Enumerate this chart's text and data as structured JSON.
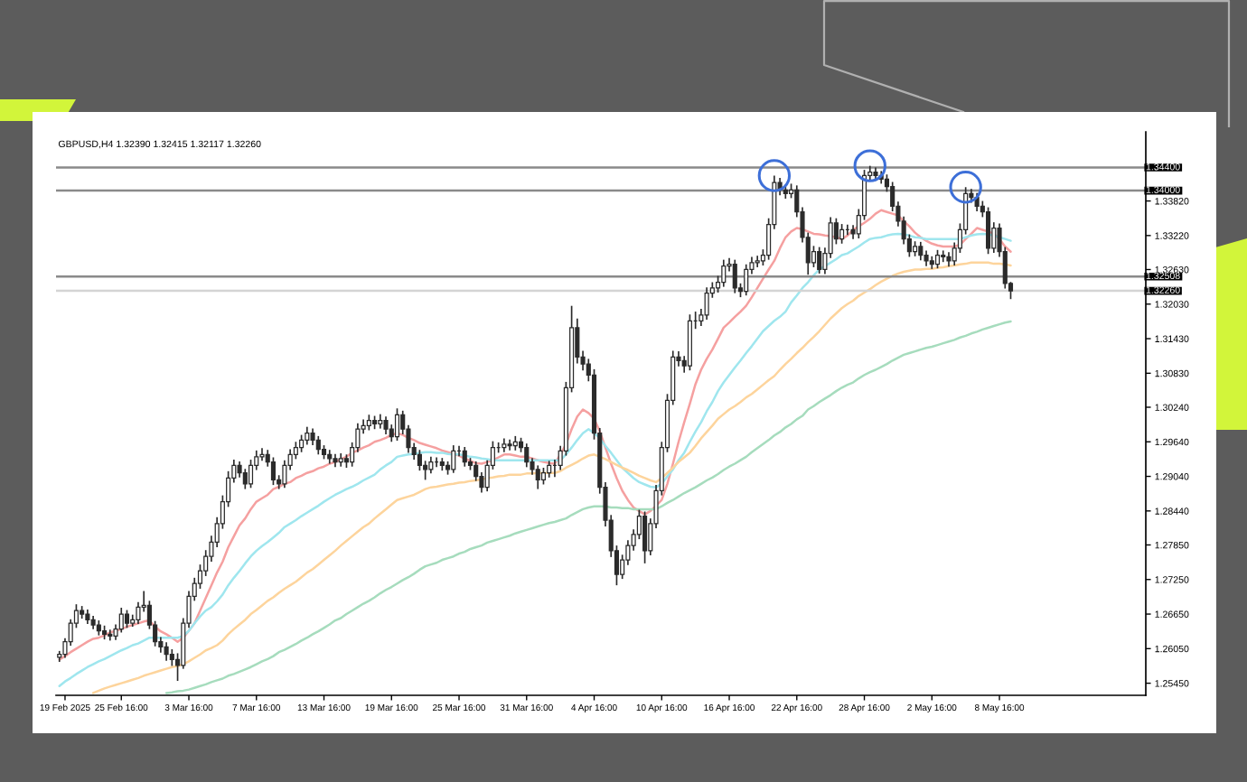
{
  "chart_data": {
    "type": "candlestick",
    "title": "GBPUSD,H4 1.32390 1.32415 1.32117 1.32260",
    "color": "#2b2b2b",
    "categories": [
      null,
      "19 Feb 2025",
      null,
      null,
      null,
      null,
      null,
      null,
      null,
      null,
      null,
      "25 Feb 16:00",
      null,
      null,
      null,
      null,
      null,
      null,
      null,
      null,
      null,
      null,
      null,
      "3 Mar 16:00",
      null,
      null,
      null,
      null,
      null,
      null,
      null,
      null,
      null,
      null,
      null,
      "7 Mar 16:00",
      null,
      null,
      null,
      null,
      null,
      null,
      null,
      null,
      null,
      null,
      null,
      "13 Mar 16:00",
      null,
      null,
      null,
      null,
      null,
      null,
      null,
      null,
      null,
      null,
      null,
      "19 Mar 16:00",
      null,
      null,
      null,
      null,
      null,
      null,
      null,
      null,
      null,
      null,
      null,
      "25 Mar 16:00",
      null,
      null,
      null,
      null,
      null,
      null,
      null,
      null,
      null,
      null,
      null,
      "31 Mar 16:00",
      null,
      null,
      null,
      null,
      null,
      null,
      null,
      null,
      null,
      null,
      null,
      "4 Apr 16:00",
      null,
      null,
      null,
      null,
      null,
      null,
      null,
      null,
      null,
      null,
      null,
      "10 Apr 16:00",
      null,
      null,
      null,
      null,
      null,
      null,
      null,
      null,
      null,
      null,
      null,
      "16 Apr 16:00",
      null,
      null,
      null,
      null,
      null,
      null,
      null,
      null,
      null,
      null,
      null,
      "22 Apr 16:00",
      null,
      null,
      null,
      null,
      null,
      null,
      null,
      null,
      null,
      null,
      null,
      "28 Apr 16:00",
      null,
      null,
      null,
      null,
      null,
      null,
      null,
      null,
      null,
      null,
      null,
      "2 May 16:00",
      null,
      null,
      null,
      null,
      null,
      null,
      null,
      null,
      null,
      null,
      null,
      "8 May 16:00",
      null,
      null
    ],
    "ohlc": [
      [
        1.259,
        1.2601,
        1.2582,
        1.2595
      ],
      [
        1.2595,
        1.2623,
        1.2589,
        1.2617
      ],
      [
        1.2617,
        1.2656,
        1.261,
        1.2649
      ],
      [
        1.2649,
        1.2682,
        1.2641,
        1.2671
      ],
      [
        1.2671,
        1.2679,
        1.2657,
        1.2665
      ],
      [
        1.2665,
        1.2673,
        1.2648,
        1.2655
      ],
      [
        1.2655,
        1.2662,
        1.2639,
        1.2646
      ],
      [
        1.2646,
        1.2654,
        1.2628,
        1.2636
      ],
      [
        1.2636,
        1.2645,
        1.2621,
        1.263
      ],
      [
        1.263,
        1.2638,
        1.2619,
        1.2627
      ],
      [
        1.2627,
        1.2647,
        1.262,
        1.2639
      ],
      [
        1.2639,
        1.2676,
        1.2633,
        1.2665
      ],
      [
        1.2665,
        1.2672,
        1.2641,
        1.2649
      ],
      [
        1.2649,
        1.2664,
        1.2643,
        1.2655
      ],
      [
        1.2655,
        1.2686,
        1.2648,
        1.2677
      ],
      [
        1.2677,
        1.2705,
        1.2669,
        1.268
      ],
      [
        1.268,
        1.2688,
        1.2639,
        1.2646
      ],
      [
        1.2646,
        1.2653,
        1.2609,
        1.2617
      ],
      [
        1.2617,
        1.2625,
        1.2598,
        1.2608
      ],
      [
        1.2608,
        1.2616,
        1.2584,
        1.2595
      ],
      [
        1.2595,
        1.2604,
        1.2575,
        1.2586
      ],
      [
        1.2586,
        1.2597,
        1.2549,
        1.2576
      ],
      [
        1.2576,
        1.2658,
        1.257,
        1.2649
      ],
      [
        1.2649,
        1.2705,
        1.2641,
        1.2696
      ],
      [
        1.2696,
        1.2728,
        1.2688,
        1.2718
      ],
      [
        1.2718,
        1.2751,
        1.2709,
        1.274
      ],
      [
        1.274,
        1.2776,
        1.2731,
        1.2765
      ],
      [
        1.2765,
        1.2801,
        1.2756,
        1.279
      ],
      [
        1.279,
        1.2833,
        1.2781,
        1.2822
      ],
      [
        1.2822,
        1.2871,
        1.2813,
        1.286
      ],
      [
        1.286,
        1.2913,
        1.2851,
        1.2901
      ],
      [
        1.2901,
        1.2933,
        1.2893,
        1.2923
      ],
      [
        1.2923,
        1.293,
        1.2902,
        1.291
      ],
      [
        1.291,
        1.2917,
        1.2882,
        1.2891
      ],
      [
        1.2891,
        1.2933,
        1.2884,
        1.2923
      ],
      [
        1.2923,
        1.2949,
        1.2915,
        1.2938
      ],
      [
        1.2938,
        1.2953,
        1.2931,
        1.2942
      ],
      [
        1.2942,
        1.295,
        1.2921,
        1.2929
      ],
      [
        1.2929,
        1.2937,
        1.2889,
        1.2898
      ],
      [
        1.2898,
        1.2906,
        1.2882,
        1.2891
      ],
      [
        1.2891,
        1.2932,
        1.2884,
        1.2923
      ],
      [
        1.2923,
        1.2951,
        1.2915,
        1.2942
      ],
      [
        1.2942,
        1.2964,
        1.2934,
        1.2954
      ],
      [
        1.2954,
        1.2976,
        1.2946,
        1.2967
      ],
      [
        1.2967,
        1.299,
        1.2959,
        1.2979
      ],
      [
        1.2979,
        1.2987,
        1.2958,
        1.2967
      ],
      [
        1.2967,
        1.2974,
        1.2942,
        1.2951
      ],
      [
        1.2951,
        1.2958,
        1.2934,
        1.2942
      ],
      [
        1.2942,
        1.295,
        1.2926,
        1.2935
      ],
      [
        1.2935,
        1.2943,
        1.292,
        1.2929
      ],
      [
        1.2929,
        1.2944,
        1.2921,
        1.2935
      ],
      [
        1.2935,
        1.2942,
        1.2919,
        1.2929
      ],
      [
        1.2929,
        1.2963,
        1.2921,
        1.2954
      ],
      [
        1.2954,
        1.2996,
        1.2946,
        1.2986
      ],
      [
        1.2986,
        1.3003,
        1.2978,
        1.2992
      ],
      [
        1.2992,
        1.3011,
        1.2984,
        1.3001
      ],
      [
        1.3001,
        1.3009,
        1.2986,
        1.2995
      ],
      [
        1.2995,
        1.3012,
        1.2987,
        1.3001
      ],
      [
        1.3001,
        1.3008,
        1.2977,
        1.2986
      ],
      [
        1.2986,
        1.2994,
        1.2964,
        1.2973
      ],
      [
        1.2973,
        1.3022,
        1.2966,
        1.3011
      ],
      [
        1.3011,
        1.3018,
        1.2977,
        1.2986
      ],
      [
        1.2986,
        1.2993,
        1.2945,
        1.2954
      ],
      [
        1.2954,
        1.2962,
        1.2933,
        1.2942
      ],
      [
        1.2942,
        1.295,
        1.2914,
        1.2923
      ],
      [
        1.2923,
        1.2931,
        1.2898,
        1.2916
      ],
      [
        1.2916,
        1.2938,
        1.2909,
        1.2929
      ],
      [
        1.2929,
        1.2937,
        1.292,
        1.2929
      ],
      [
        1.2929,
        1.2936,
        1.2914,
        1.2923
      ],
      [
        1.2923,
        1.293,
        1.2907,
        1.2916
      ],
      [
        1.2916,
        1.2958,
        1.291,
        1.2948
      ],
      [
        1.2948,
        1.2957,
        1.2939,
        1.2948
      ],
      [
        1.2948,
        1.2955,
        1.2921,
        1.2929
      ],
      [
        1.2929,
        1.2936,
        1.2915,
        1.2923
      ],
      [
        1.2923,
        1.293,
        1.2896,
        1.2904
      ],
      [
        1.2904,
        1.2911,
        1.2876,
        1.2885
      ],
      [
        1.2885,
        1.2932,
        1.2878,
        1.2923
      ],
      [
        1.2923,
        1.2965,
        1.2916,
        1.2954
      ],
      [
        1.2954,
        1.2963,
        1.2945,
        1.2954
      ],
      [
        1.2954,
        1.297,
        1.2946,
        1.296
      ],
      [
        1.296,
        1.2968,
        1.2949,
        1.2957
      ],
      [
        1.2957,
        1.2974,
        1.2949,
        1.2964
      ],
      [
        1.2964,
        1.2971,
        1.2946,
        1.2954
      ],
      [
        1.2954,
        1.2961,
        1.292,
        1.2929
      ],
      [
        1.2929,
        1.2936,
        1.2907,
        1.2916
      ],
      [
        1.2916,
        1.2923,
        1.2882,
        1.2898
      ],
      [
        1.2898,
        1.2919,
        1.289,
        1.291
      ],
      [
        1.291,
        1.2931,
        1.2902,
        1.2923
      ],
      [
        1.2923,
        1.2933,
        1.2903,
        1.2923
      ],
      [
        1.2923,
        1.2957,
        1.2915,
        1.2948
      ],
      [
        1.2948,
        1.3068,
        1.294,
        1.3058
      ],
      [
        1.3058,
        1.32,
        1.305,
        1.3162
      ],
      [
        1.3162,
        1.3178,
        1.31,
        1.3111
      ],
      [
        1.3111,
        1.3122,
        1.3088,
        1.3099
      ],
      [
        1.3099,
        1.3108,
        1.3069,
        1.308
      ],
      [
        1.308,
        1.309,
        1.2968,
        1.2979
      ],
      [
        1.2979,
        1.2988,
        1.2874,
        1.2885
      ],
      [
        1.2885,
        1.2894,
        1.2817,
        1.2828
      ],
      [
        1.2828,
        1.2837,
        1.2764,
        1.2775
      ],
      [
        1.2775,
        1.2784,
        1.2715,
        1.2734
      ],
      [
        1.2734,
        1.2768,
        1.2726,
        1.2759
      ],
      [
        1.2759,
        1.2793,
        1.275,
        1.2784
      ],
      [
        1.2784,
        1.2812,
        1.2775,
        1.2803
      ],
      [
        1.2803,
        1.2846,
        1.2795,
        1.2835
      ],
      [
        1.2835,
        1.2843,
        1.2753,
        1.2775
      ],
      [
        1.2775,
        1.2831,
        1.2767,
        1.2822
      ],
      [
        1.2822,
        1.2889,
        1.2814,
        1.2879
      ],
      [
        1.2879,
        1.2964,
        1.2871,
        1.2954
      ],
      [
        1.2954,
        1.3047,
        1.2946,
        1.3036
      ],
      [
        1.3036,
        1.3122,
        1.3028,
        1.3111
      ],
      [
        1.3111,
        1.3121,
        1.3095,
        1.3105
      ],
      [
        1.3105,
        1.3113,
        1.3084,
        1.3096
      ],
      [
        1.3096,
        1.3185,
        1.3088,
        1.3174
      ],
      [
        1.3174,
        1.319,
        1.316,
        1.3174
      ],
      [
        1.3174,
        1.3195,
        1.3165,
        1.3184
      ],
      [
        1.3184,
        1.3232,
        1.3176,
        1.3222
      ],
      [
        1.3222,
        1.3241,
        1.3214,
        1.3231
      ],
      [
        1.3231,
        1.3252,
        1.3223,
        1.3241
      ],
      [
        1.3241,
        1.328,
        1.3233,
        1.3269
      ],
      [
        1.3269,
        1.3283,
        1.326,
        1.3272
      ],
      [
        1.3272,
        1.328,
        1.3222,
        1.3231
      ],
      [
        1.3231,
        1.3239,
        1.3215,
        1.3225
      ],
      [
        1.3225,
        1.3272,
        1.3218,
        1.3263
      ],
      [
        1.3263,
        1.3285,
        1.3255,
        1.3275
      ],
      [
        1.3275,
        1.3287,
        1.3267,
        1.3278
      ],
      [
        1.3278,
        1.3298,
        1.327,
        1.3288
      ],
      [
        1.3288,
        1.3352,
        1.328,
        1.3341
      ],
      [
        1.3341,
        1.3426,
        1.3333,
        1.3414
      ],
      [
        1.3414,
        1.3422,
        1.3392,
        1.3401
      ],
      [
        1.3401,
        1.341,
        1.3386,
        1.3395
      ],
      [
        1.3395,
        1.3412,
        1.3387,
        1.3401
      ],
      [
        1.3401,
        1.3409,
        1.3354,
        1.3363
      ],
      [
        1.3363,
        1.3371,
        1.331,
        1.3319
      ],
      [
        1.3319,
        1.3327,
        1.3254,
        1.3275
      ],
      [
        1.3275,
        1.3304,
        1.3267,
        1.3294
      ],
      [
        1.3294,
        1.3302,
        1.3256,
        1.3263
      ],
      [
        1.3263,
        1.3301,
        1.3255,
        1.3291
      ],
      [
        1.3291,
        1.3354,
        1.3283,
        1.3344
      ],
      [
        1.3344,
        1.3352,
        1.3307,
        1.3316
      ],
      [
        1.3316,
        1.3342,
        1.3308,
        1.3332
      ],
      [
        1.3332,
        1.3341,
        1.3323,
        1.3332
      ],
      [
        1.3332,
        1.334,
        1.3316,
        1.3325
      ],
      [
        1.3325,
        1.3368,
        1.3317,
        1.3357
      ],
      [
        1.3357,
        1.3436,
        1.3349,
        1.3426
      ],
      [
        1.3426,
        1.3443,
        1.3418,
        1.3432
      ],
      [
        1.3432,
        1.344,
        1.3417,
        1.3426
      ],
      [
        1.3426,
        1.3434,
        1.3412,
        1.342
      ],
      [
        1.342,
        1.3428,
        1.3398,
        1.3407
      ],
      [
        1.3407,
        1.3415,
        1.3364,
        1.3373
      ],
      [
        1.3373,
        1.3381,
        1.3338,
        1.3347
      ],
      [
        1.3347,
        1.3355,
        1.3307,
        1.3316
      ],
      [
        1.3316,
        1.3324,
        1.3285,
        1.3294
      ],
      [
        1.3294,
        1.3312,
        1.3286,
        1.3303
      ],
      [
        1.3303,
        1.3311,
        1.3279,
        1.3288
      ],
      [
        1.3288,
        1.3296,
        1.3269,
        1.3278
      ],
      [
        1.3278,
        1.3286,
        1.3264,
        1.3272
      ],
      [
        1.3272,
        1.3297,
        1.3265,
        1.3288
      ],
      [
        1.3288,
        1.3296,
        1.3276,
        1.3285
      ],
      [
        1.3285,
        1.3293,
        1.3268,
        1.3278
      ],
      [
        1.3278,
        1.331,
        1.327,
        1.33
      ],
      [
        1.33,
        1.3343,
        1.3292,
        1.3332
      ],
      [
        1.3332,
        1.3406,
        1.3324,
        1.3395
      ],
      [
        1.3395,
        1.3403,
        1.3379,
        1.3388
      ],
      [
        1.3388,
        1.3396,
        1.3364,
        1.3373
      ],
      [
        1.3373,
        1.3382,
        1.3354,
        1.3363
      ],
      [
        1.3363,
        1.3371,
        1.329,
        1.33
      ],
      [
        1.33,
        1.3345,
        1.3292,
        1.3335
      ],
      [
        1.3335,
        1.3343,
        1.3285,
        1.3294
      ],
      [
        1.3294,
        1.3302,
        1.323,
        1.3239
      ],
      [
        1.3239,
        1.32415,
        1.32117,
        1.3226
      ]
    ],
    "series": [
      {
        "type": "line",
        "color": "#f5a0a0",
        "values": [
          1.2586,
          1.2592,
          1.2599,
          1.2605,
          1.2611,
          1.2617,
          1.2622,
          1.2624,
          1.2628,
          1.2633,
          1.2636,
          1.2639,
          1.2643,
          1.2646,
          1.2649,
          1.2652,
          1.2654,
          1.2643,
          1.2635,
          1.263,
          1.2624,
          1.2617,
          1.2624,
          1.2636,
          1.2649,
          1.2671,
          1.2693,
          1.2715,
          1.2737,
          1.2756,
          1.2781,
          1.28,
          1.2819,
          1.2831,
          1.2847,
          1.286,
          1.2866,
          1.2872,
          1.2882,
          1.2886,
          1.2891,
          1.2894,
          1.2901,
          1.2905,
          1.291,
          1.2913,
          1.2918,
          1.2921,
          1.2926,
          1.2929,
          1.2934,
          1.2938,
          1.2945,
          1.2949,
          1.2954,
          1.2958,
          1.2964,
          1.2967,
          1.2971,
          1.2976,
          1.2979,
          1.2976,
          1.2971,
          1.2967,
          1.2962,
          1.2959,
          1.2956,
          1.2953,
          1.2949,
          1.2946,
          1.2943,
          1.294,
          1.2935,
          1.2931,
          1.2927,
          1.2926,
          1.2929,
          1.2932,
          1.2937,
          1.2942,
          1.2942,
          1.294,
          1.2938,
          1.2938,
          1.2935,
          1.2932,
          1.2929,
          1.2927,
          1.2926,
          1.2942,
          1.296,
          1.2986,
          1.3008,
          1.302,
          1.3014,
          1.3004,
          1.2982,
          1.2954,
          1.2926,
          1.2901,
          1.2879,
          1.2863,
          1.285,
          1.2844,
          1.2838,
          1.2844,
          1.2853,
          1.2863,
          1.2891,
          1.2926,
          1.2964,
          1.2998,
          1.303,
          1.3064,
          1.3089,
          1.3108,
          1.3124,
          1.3143,
          1.3162,
          1.3171,
          1.3181,
          1.319,
          1.32,
          1.3215,
          1.3231,
          1.3247,
          1.3263,
          1.3278,
          1.33,
          1.3319,
          1.3329,
          1.3335,
          1.3333,
          1.3329,
          1.3325,
          1.3324,
          1.3322,
          1.3321,
          1.3319,
          1.3316,
          1.3322,
          1.3332,
          1.3338,
          1.3344,
          1.3351,
          1.336,
          1.3366,
          1.3363,
          1.336,
          1.3357,
          1.3347,
          1.3338,
          1.3327,
          1.3319,
          1.3313,
          1.3308,
          1.3305,
          1.3303,
          1.3303,
          1.3303,
          1.3306,
          1.3316,
          1.3325,
          1.3335,
          1.3332,
          1.3329,
          1.3325,
          1.3316,
          1.3303,
          1.3294
        ]
      },
      {
        "type": "line",
        "color": "#9fe6ee",
        "values": [
          1.254,
          1.2548,
          1.2554,
          1.2561,
          1.2567,
          1.2573,
          1.2578,
          1.2583,
          1.2587,
          1.2592,
          1.2597,
          1.2602,
          1.2606,
          1.2611,
          1.2614,
          1.2619,
          1.2624,
          1.2624,
          1.2624,
          1.2624,
          1.2624,
          1.2624,
          1.2627,
          1.2636,
          1.2649,
          1.2661,
          1.2671,
          1.2677,
          1.2687,
          1.2699,
          1.2715,
          1.2728,
          1.274,
          1.2753,
          1.2765,
          1.2775,
          1.2783,
          1.279,
          1.2798,
          1.2806,
          1.2816,
          1.2822,
          1.2828,
          1.2835,
          1.2841,
          1.2847,
          1.2853,
          1.286,
          1.2866,
          1.2872,
          1.2877,
          1.2882,
          1.2886,
          1.2891,
          1.2897,
          1.2902,
          1.2907,
          1.2916,
          1.2923,
          1.2929,
          1.2938,
          1.294,
          1.2942,
          1.2943,
          1.2945,
          1.2946,
          1.2946,
          1.2945,
          1.2945,
          1.2943,
          1.2942,
          1.2942,
          1.294,
          1.2938,
          1.2937,
          1.2935,
          1.2934,
          1.2932,
          1.2932,
          1.2932,
          1.2932,
          1.2932,
          1.2932,
          1.2932,
          1.2932,
          1.2932,
          1.2932,
          1.2932,
          1.2932,
          1.2932,
          1.2942,
          1.2954,
          1.2967,
          1.2979,
          1.2986,
          1.2979,
          1.297,
          1.2957,
          1.2945,
          1.2932,
          1.2919,
          1.291,
          1.2901,
          1.2894,
          1.289,
          1.2886,
          1.2885,
          1.2891,
          1.2904,
          1.2916,
          1.2932,
          1.2945,
          1.2964,
          1.2982,
          1.2998,
          1.3017,
          1.3033,
          1.3052,
          1.3067,
          1.308,
          1.3093,
          1.3105,
          1.3118,
          1.313,
          1.3143,
          1.3156,
          1.3165,
          1.3174,
          1.3181,
          1.319,
          1.3206,
          1.3218,
          1.3231,
          1.3241,
          1.3253,
          1.3263,
          1.3269,
          1.3275,
          1.3281,
          1.3288,
          1.3291,
          1.3297,
          1.3303,
          1.331,
          1.3316,
          1.3318,
          1.3319,
          1.3322,
          1.3324,
          1.3325,
          1.3324,
          1.3322,
          1.3319,
          1.3318,
          1.3316,
          1.3316,
          1.3316,
          1.3316,
          1.3316,
          1.3316,
          1.3316,
          1.3319,
          1.3322,
          1.3324,
          1.3325,
          1.3324,
          1.3322,
          1.3319,
          1.3316,
          1.3313
        ]
      },
      {
        "type": "line",
        "color": "#fdd49c",
        "values": [
          null,
          null,
          null,
          null,
          null,
          null,
          1.2528,
          1.2532,
          1.2536,
          1.2539,
          1.2542,
          1.2545,
          1.2548,
          1.2551,
          1.2554,
          1.2558,
          1.2561,
          1.2564,
          1.2567,
          1.257,
          1.2573,
          1.2575,
          1.2578,
          1.2583,
          1.2589,
          1.2595,
          1.2602,
          1.2606,
          1.2611,
          1.2619,
          1.263,
          1.2639,
          1.2647,
          1.2655,
          1.2665,
          1.2672,
          1.268,
          1.2688,
          1.2694,
          1.2702,
          1.2709,
          1.2715,
          1.2721,
          1.2729,
          1.2737,
          1.2743,
          1.2751,
          1.2759,
          1.2767,
          1.2775,
          1.2784,
          1.2792,
          1.28,
          1.2808,
          1.2816,
          1.2822,
          1.2831,
          1.2839,
          1.2847,
          1.2855,
          1.2863,
          1.2866,
          1.2869,
          1.2872,
          1.2877,
          1.2882,
          1.2885,
          1.2886,
          1.2888,
          1.289,
          1.2891,
          1.2893,
          1.2894,
          1.2896,
          1.2897,
          1.2899,
          1.2901,
          1.2902,
          1.2904,
          1.2905,
          1.2907,
          1.2907,
          1.2907,
          1.2909,
          1.2909,
          1.291,
          1.291,
          1.291,
          1.291,
          1.2913,
          1.2919,
          1.2924,
          1.2929,
          1.2935,
          1.294,
          1.2942,
          1.2938,
          1.2934,
          1.2929,
          1.2924,
          1.2919,
          1.2915,
          1.291,
          1.2905,
          1.2901,
          1.2897,
          1.2894,
          1.2901,
          1.291,
          1.2919,
          1.2929,
          1.2937,
          1.2945,
          1.2957,
          1.297,
          1.2981,
          1.2992,
          1.3004,
          1.3012,
          1.302,
          1.3026,
          1.3033,
          1.3041,
          1.3047,
          1.3055,
          1.3063,
          1.3071,
          1.3078,
          1.3089,
          1.3099,
          1.3108,
          1.3118,
          1.3127,
          1.3137,
          1.3146,
          1.3156,
          1.3167,
          1.3178,
          1.3187,
          1.3196,
          1.3203,
          1.3209,
          1.3217,
          1.3223,
          1.3229,
          1.3236,
          1.3242,
          1.3247,
          1.3252,
          1.3256,
          1.3259,
          1.3261,
          1.3263,
          1.3263,
          1.3264,
          1.3264,
          1.3266,
          1.3267,
          1.3269,
          1.327,
          1.3272,
          1.3273,
          1.3275,
          1.3275,
          1.3275,
          1.3275,
          1.3273,
          1.3273,
          1.3272,
          1.327
        ]
      },
      {
        "type": "line",
        "color": "#a6dcbd",
        "values": [
          null,
          null,
          null,
          null,
          null,
          null,
          null,
          null,
          null,
          null,
          null,
          null,
          null,
          null,
          null,
          null,
          null,
          null,
          null,
          1.2528,
          1.2529,
          1.2531,
          1.2532,
          1.2534,
          1.2537,
          1.254,
          1.2543,
          1.2547,
          1.255,
          1.2553,
          1.2558,
          1.2561,
          1.2565,
          1.2569,
          1.2573,
          1.2578,
          1.2583,
          1.2587,
          1.2592,
          1.2599,
          1.2603,
          1.2608,
          1.2613,
          1.2619,
          1.2624,
          1.263,
          1.2635,
          1.2641,
          1.2647,
          1.2654,
          1.2658,
          1.2665,
          1.2671,
          1.2677,
          1.2683,
          1.2688,
          1.2694,
          1.2701,
          1.2707,
          1.2712,
          1.2718,
          1.2724,
          1.2729,
          1.2735,
          1.2742,
          1.2748,
          1.2751,
          1.2754,
          1.2759,
          1.2762,
          1.2765,
          1.277,
          1.2773,
          1.2778,
          1.2781,
          1.2784,
          1.2789,
          1.2792,
          1.2795,
          1.2798,
          1.2801,
          1.2805,
          1.2808,
          1.2811,
          1.2814,
          1.2817,
          1.282,
          1.2823,
          1.2825,
          1.2828,
          1.2831,
          1.2837,
          1.2842,
          1.2847,
          1.285,
          1.2852,
          1.2852,
          1.2852,
          1.285,
          1.285,
          1.2849,
          1.2849,
          1.2847,
          1.2847,
          1.2847,
          1.2847,
          1.2847,
          1.2852,
          1.2858,
          1.2863,
          1.2869,
          1.2875,
          1.288,
          1.2885,
          1.2891,
          1.2897,
          1.2902,
          1.2908,
          1.2915,
          1.2921,
          1.2926,
          1.2932,
          1.2938,
          1.2946,
          1.2953,
          1.296,
          1.2967,
          1.2975,
          1.2981,
          1.2989,
          1.2995,
          1.3003,
          1.3009,
          1.302,
          1.3026,
          1.3033,
          1.3039,
          1.3045,
          1.3052,
          1.3058,
          1.3063,
          1.3067,
          1.3074,
          1.308,
          1.3085,
          1.3089,
          1.3094,
          1.3099,
          1.3105,
          1.311,
          1.3115,
          1.3118,
          1.3121,
          1.3124,
          1.3127,
          1.3129,
          1.3132,
          1.3135,
          1.3138,
          1.3141,
          1.3145,
          1.3148,
          1.3152,
          1.3155,
          1.3159,
          1.3162,
          1.3165,
          1.3168,
          1.3171,
          1.3173
        ]
      }
    ],
    "ylim": [
      1.2524,
      1.3502
    ],
    "yticks": [
      {
        "value": 1.2545,
        "label": "1.25450"
      },
      {
        "value": 1.2605,
        "label": "1.26050"
      },
      {
        "value": 1.2665,
        "label": "1.26650"
      },
      {
        "value": 1.2725,
        "label": "1.27250"
      },
      {
        "value": 1.2785,
        "label": "1.27850"
      },
      {
        "value": 1.2844,
        "label": "1.28440"
      },
      {
        "value": 1.2904,
        "label": "1.29040"
      },
      {
        "value": 1.2964,
        "label": "1.29640"
      },
      {
        "value": 1.3024,
        "label": "1.30240"
      },
      {
        "value": 1.3083,
        "label": "1.30830"
      },
      {
        "value": 1.3143,
        "label": "1.31430"
      },
      {
        "value": 1.3203,
        "label": "1.32030"
      },
      {
        "value": 1.3263,
        "label": "1.32630"
      },
      {
        "value": 1.3322,
        "label": "1.33220"
      },
      {
        "value": 1.3382,
        "label": "1.33820"
      }
    ],
    "ref_lines": [
      {
        "axis": "y",
        "value": 1.344,
        "label": "1.34400",
        "color": "#8a8a8a"
      },
      {
        "axis": "y",
        "value": 1.34,
        "label": "1.34000",
        "color": "#8a8a8a"
      },
      {
        "axis": "y",
        "value": 1.32508,
        "label": "1.32508",
        "color": "#8a8a8a"
      },
      {
        "axis": "y",
        "value": 1.3226,
        "label": "1.32260",
        "color": "#d4d4d4"
      }
    ]
  }
}
